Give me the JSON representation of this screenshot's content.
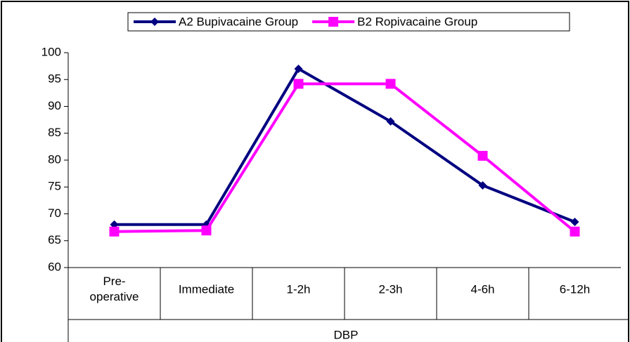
{
  "chart_data": {
    "type": "line",
    "categories": [
      "Pre-\noperative",
      "Immediate",
      "1-2h",
      "2-3h",
      "4-6h",
      "6-12h"
    ],
    "x_label": "DBP",
    "series": [
      {
        "name": "A2 Bupivacaine Group",
        "color": "#000080",
        "marker": "diamond",
        "values": [
          68,
          68,
          97,
          87.2,
          75.3,
          68.5
        ]
      },
      {
        "name": "B2 Ropivacaine Group",
        "color": "#ff00ff",
        "marker": "square",
        "values": [
          66.7,
          66.9,
          94.2,
          94.2,
          80.8,
          66.7
        ]
      }
    ],
    "ylim": [
      60,
      100
    ],
    "yticks": [
      60,
      65,
      70,
      75,
      80,
      85,
      90,
      95,
      100
    ],
    "legend": "top"
  }
}
